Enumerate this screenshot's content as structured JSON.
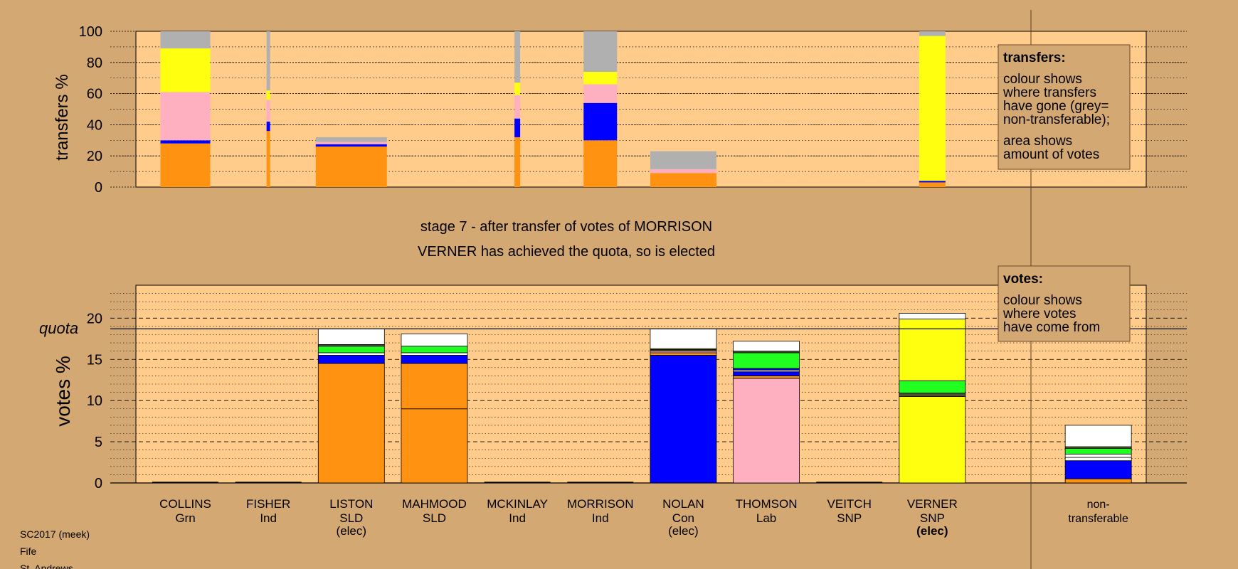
{
  "palette": {
    "background": "#D4A873",
    "plot": "#FFCC8C",
    "orange": "#FF9210",
    "blue": "#0000FF",
    "pink": "#FFB0C0",
    "yellow": "#FFFF10",
    "green": "#20FF20",
    "grey": "#B0B0B0",
    "white": "#FFFFFF",
    "dark": "#505030"
  },
  "header": {
    "stage_text": "stage 7 - after transfer of votes of MORRISON",
    "status_text": "VERNER has achieved the quota, so is elected"
  },
  "footer": {
    "line1": "SC2017 (meek)",
    "line2": "Fife",
    "line3": "St. Andrews"
  },
  "legend_transfers": {
    "title": "transfers:",
    "lines": [
      "colour shows",
      "where transfers",
      "have gone (grey=",
      "non-transferable);",
      "area shows",
      "amount of votes"
    ]
  },
  "legend_votes": {
    "title": "votes:",
    "lines": [
      "colour shows",
      "where votes",
      "have come from"
    ]
  },
  "chart_data": [
    {
      "type": "bar",
      "ylabel": "transfers %",
      "ylim": [
        0,
        100
      ],
      "yticks": [
        0,
        20,
        40,
        60,
        80,
        100
      ],
      "note": "bar width shows amount of votes; colour shows where transfers have gone",
      "bars": [
        {
          "candidate": "COLLINS",
          "width_share": 0.7,
          "segments": [
            {
              "color": "orange",
              "value": 28
            },
            {
              "color": "blue",
              "value": 2
            },
            {
              "color": "pink",
              "value": 31
            },
            {
              "color": "yellow",
              "value": 28
            },
            {
              "color": "grey",
              "value": 11
            }
          ]
        },
        {
          "candidate": "FISHER",
          "width_share": 0.05,
          "segments": [
            {
              "color": "orange",
              "value": 36
            },
            {
              "color": "blue",
              "value": 6
            },
            {
              "color": "pink",
              "value": 14
            },
            {
              "color": "yellow",
              "value": 6
            },
            {
              "color": "grey",
              "value": 38
            }
          ]
        },
        {
          "candidate": "LISTON",
          "width_share": 1.0,
          "segments": [
            {
              "color": "orange",
              "value": 26
            },
            {
              "color": "blue",
              "value": 1.5
            },
            {
              "color": "pink",
              "value": 1.5
            },
            {
              "color": "grey",
              "value": 3
            }
          ]
        },
        {
          "candidate": "MCKINLAY",
          "width_share": 0.08,
          "segments": [
            {
              "color": "orange",
              "value": 32
            },
            {
              "color": "blue",
              "value": 12
            },
            {
              "color": "pink",
              "value": 15
            },
            {
              "color": "yellow",
              "value": 8
            },
            {
              "color": "grey",
              "value": 33
            }
          ]
        },
        {
          "candidate": "MORRISON",
          "width_share": 0.47,
          "segments": [
            {
              "color": "orange",
              "value": 30
            },
            {
              "color": "blue",
              "value": 24
            },
            {
              "color": "pink",
              "value": 12
            },
            {
              "color": "yellow",
              "value": 8
            },
            {
              "color": "grey",
              "value": 26
            }
          ]
        },
        {
          "candidate": "NOLAN",
          "width_share": 0.93,
          "segments": [
            {
              "color": "orange",
              "value": 9
            },
            {
              "color": "pink",
              "value": 2.5
            },
            {
              "color": "grey",
              "value": 11.5
            }
          ]
        },
        {
          "candidate": "VERNER",
          "width_share": 0.37,
          "segments": [
            {
              "color": "orange",
              "value": 3
            },
            {
              "color": "blue",
              "value": 1
            },
            {
              "color": "yellow",
              "value": 93
            },
            {
              "color": "grey",
              "value": 3
            }
          ]
        }
      ]
    },
    {
      "type": "bar",
      "ylabel": "votes %",
      "ylim": [
        0,
        24
      ],
      "yticks": [
        0,
        5,
        10,
        15,
        20
      ],
      "quota": 18.7,
      "quota_label": "quota",
      "candidates": [
        {
          "name": "COLLINS",
          "party": "Grn",
          "status": "",
          "segments": []
        },
        {
          "name": "FISHER",
          "party": "Ind",
          "status": "",
          "segments": []
        },
        {
          "name": "LISTON",
          "party": "SLD",
          "status": "(elec)",
          "segments": [
            {
              "color": "orange",
              "value": 14.5
            },
            {
              "color": "blue",
              "value": 1.0
            },
            {
              "color": "white",
              "value": 0.3
            },
            {
              "color": "green",
              "value": 0.8
            },
            {
              "color": "dark",
              "value": 0.2
            },
            {
              "color": "white",
              "value": 1.9
            }
          ]
        },
        {
          "name": "MAHMOOD",
          "party": "SLD",
          "status": "",
          "segments": [
            {
              "color": "orange",
              "value": 9.0
            },
            {
              "color": "orange",
              "value": 5.5
            },
            {
              "color": "blue",
              "value": 1.0
            },
            {
              "color": "white",
              "value": 0.3
            },
            {
              "color": "green",
              "value": 0.8
            },
            {
              "color": "white",
              "value": 1.5
            }
          ]
        },
        {
          "name": "MCKINLAY",
          "party": "Ind",
          "status": "",
          "segments": []
        },
        {
          "name": "MORRISON",
          "party": "Ind",
          "status": "",
          "segments": []
        },
        {
          "name": "NOLAN",
          "party": "Con",
          "status": "(elec)",
          "segments": [
            {
              "color": "blue",
              "value": 15.5
            },
            {
              "color": "orange",
              "value": 0.3
            },
            {
              "color": "pink",
              "value": 0.2
            },
            {
              "color": "dark",
              "value": 0.2
            },
            {
              "color": "yellow",
              "value": 0.1
            },
            {
              "color": "white",
              "value": 2.4
            }
          ]
        },
        {
          "name": "THOMSON",
          "party": "Lab",
          "status": "",
          "segments": [
            {
              "color": "pink",
              "value": 12.7
            },
            {
              "color": "orange",
              "value": 0.3
            },
            {
              "color": "blue",
              "value": 0.5
            },
            {
              "color": "white",
              "value": 0.2
            },
            {
              "color": "blue",
              "value": 0.2
            },
            {
              "color": "green",
              "value": 1.9
            },
            {
              "color": "dark",
              "value": 0.2
            },
            {
              "color": "white",
              "value": 1.2
            }
          ]
        },
        {
          "name": "VEITCH",
          "party": "SNP",
          "status": "",
          "segments": []
        },
        {
          "name": "VERNER",
          "party": "SNP",
          "status": "(elec)",
          "status_bold": true,
          "segments": [
            {
              "color": "yellow",
              "value": 10.5
            },
            {
              "color": "dark",
              "value": 0.4
            },
            {
              "color": "green",
              "value": 1.5
            },
            {
              "color": "yellow",
              "value": 7.5
            },
            {
              "color": "white",
              "value": 0.7
            }
          ]
        },
        {
          "name": "",
          "party": "",
          "status": "",
          "segments": []
        },
        {
          "name": "non-",
          "party": "transferable",
          "status": "",
          "segments": [
            {
              "color": "orange",
              "value": 0.5
            },
            {
              "color": "blue",
              "value": 2.2
            },
            {
              "color": "white",
              "value": 0.4
            },
            {
              "color": "white",
              "value": 0.4
            },
            {
              "color": "green",
              "value": 0.7
            },
            {
              "color": "dark",
              "value": 0.2
            },
            {
              "color": "white",
              "value": 2.6
            }
          ]
        }
      ]
    }
  ]
}
